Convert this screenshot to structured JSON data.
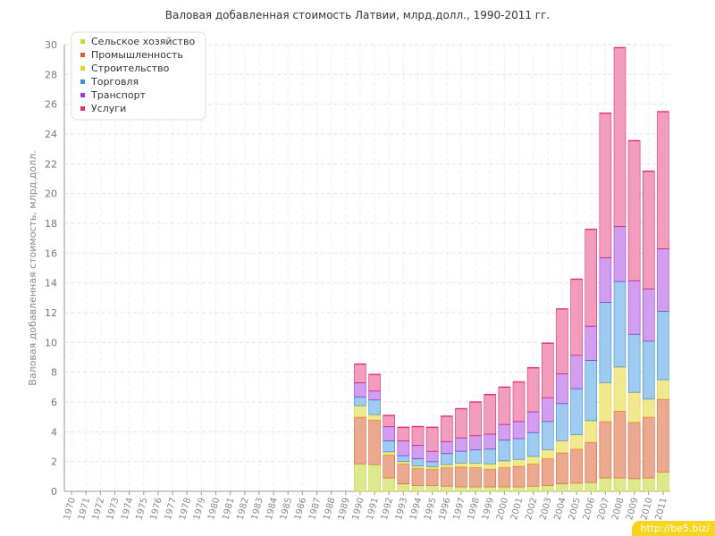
{
  "watermark": "http://be5.biz/",
  "chart_data": {
    "type": "bar",
    "stacked": true,
    "title": "Валовая добавленная стоимость Латвии, млрд.долл., 1990-2011 гг.",
    "xlabel": "",
    "ylabel": "Валовая добавленная стоимость, млрд.долл.",
    "ylim": [
      0,
      30
    ],
    "yticks": [
      0,
      2,
      4,
      6,
      8,
      10,
      12,
      14,
      16,
      18,
      20,
      22,
      24,
      26,
      28,
      30
    ],
    "grid": true,
    "legend_position": "top-left",
    "categories": [
      "1970",
      "1971",
      "1972",
      "1973",
      "1974",
      "1975",
      "1976",
      "1977",
      "1978",
      "1979",
      "1980",
      "1981",
      "1982",
      "1983",
      "1984",
      "1985",
      "1986",
      "1987",
      "1988",
      "1989",
      "1990",
      "1991",
      "1992",
      "1993",
      "1994",
      "1995",
      "1996",
      "1997",
      "1998",
      "1999",
      "2000",
      "2001",
      "2002",
      "2003",
      "2004",
      "2005",
      "2006",
      "2007",
      "2008",
      "2009",
      "2010",
      "2011"
    ],
    "series": [
      {
        "name": "Сельское хозяйство",
        "color": "#c6d92e",
        "fill": "#dde88f",
        "values": [
          null,
          null,
          null,
          null,
          null,
          null,
          null,
          null,
          null,
          null,
          null,
          null,
          null,
          null,
          null,
          null,
          null,
          null,
          null,
          null,
          1.85,
          1.8,
          0.9,
          0.5,
          0.4,
          0.4,
          0.35,
          0.3,
          0.3,
          0.3,
          0.3,
          0.3,
          0.35,
          0.4,
          0.5,
          0.55,
          0.6,
          0.9,
          0.9,
          0.85,
          0.9,
          1.3
        ]
      },
      {
        "name": "Промышленность",
        "color": "#e0603c",
        "fill": "#ebaa8f",
        "values": [
          null,
          null,
          null,
          null,
          null,
          null,
          null,
          null,
          null,
          null,
          null,
          null,
          null,
          null,
          null,
          null,
          null,
          null,
          null,
          null,
          3.15,
          3.0,
          1.55,
          1.35,
          1.15,
          1.1,
          1.25,
          1.35,
          1.3,
          1.2,
          1.3,
          1.4,
          1.5,
          1.8,
          2.1,
          2.3,
          2.7,
          3.8,
          4.5,
          3.8,
          4.1,
          4.9
        ]
      },
      {
        "name": "Строительство",
        "color": "#e6d420",
        "fill": "#f1e98f",
        "values": [
          null,
          null,
          null,
          null,
          null,
          null,
          null,
          null,
          null,
          null,
          null,
          null,
          null,
          null,
          null,
          null,
          null,
          null,
          null,
          null,
          0.75,
          0.35,
          0.2,
          0.15,
          0.15,
          0.15,
          0.2,
          0.25,
          0.3,
          0.35,
          0.45,
          0.45,
          0.5,
          0.6,
          0.8,
          0.95,
          1.45,
          2.6,
          2.95,
          2.0,
          1.2,
          1.3
        ]
      },
      {
        "name": "Торговля",
        "color": "#3a8fd8",
        "fill": "#9ecbef",
        "values": [
          null,
          null,
          null,
          null,
          null,
          null,
          null,
          null,
          null,
          null,
          null,
          null,
          null,
          null,
          null,
          null,
          null,
          null,
          null,
          null,
          0.6,
          1.0,
          0.75,
          0.4,
          0.5,
          0.35,
          0.75,
          0.8,
          0.9,
          1.0,
          1.4,
          1.4,
          1.6,
          1.9,
          2.5,
          3.1,
          4.05,
          5.4,
          5.75,
          3.9,
          3.9,
          4.6
        ]
      },
      {
        "name": "Транспорт",
        "color": "#a63ad0",
        "fill": "#d29ef0",
        "values": [
          null,
          null,
          null,
          null,
          null,
          null,
          null,
          null,
          null,
          null,
          null,
          null,
          null,
          null,
          null,
          null,
          null,
          null,
          null,
          null,
          0.95,
          0.6,
          0.95,
          1.0,
          0.9,
          0.7,
          0.8,
          0.9,
          0.95,
          1.0,
          1.05,
          1.15,
          1.4,
          1.6,
          2.0,
          2.25,
          2.3,
          3.0,
          3.7,
          3.6,
          3.5,
          4.2
        ]
      },
      {
        "name": "Услуги",
        "color": "#e0306e",
        "fill": "#f29dbd",
        "values": [
          null,
          null,
          null,
          null,
          null,
          null,
          null,
          null,
          null,
          null,
          null,
          null,
          null,
          null,
          null,
          null,
          null,
          null,
          null,
          null,
          1.25,
          1.1,
          0.75,
          0.9,
          1.25,
          1.6,
          1.7,
          1.95,
          2.25,
          2.65,
          2.5,
          2.65,
          2.95,
          3.65,
          4.35,
          5.1,
          6.5,
          9.7,
          12.0,
          9.4,
          7.9,
          9.2
        ]
      }
    ]
  }
}
